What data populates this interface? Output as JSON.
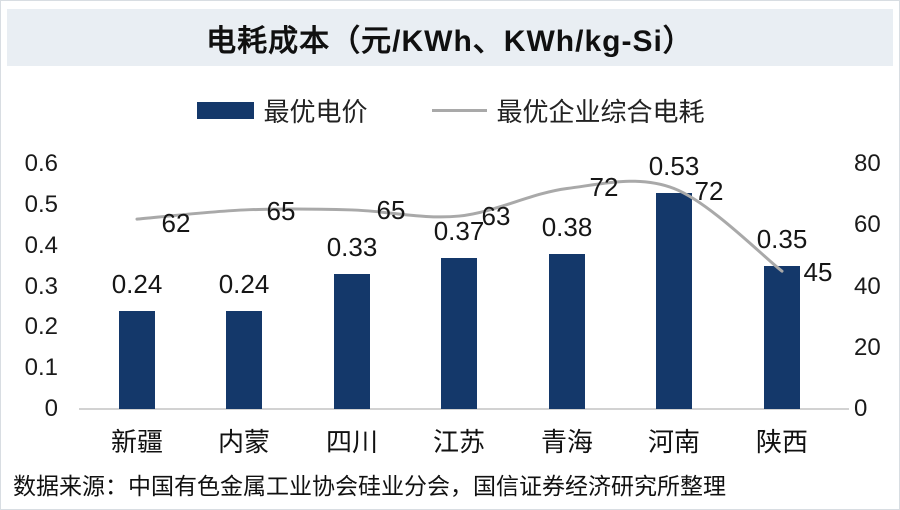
{
  "title": "电耗成本（元/KWh、KWh/kg-Si）",
  "legend": [
    {
      "label": "最优电价",
      "swatch": "bar",
      "color": "#14386a"
    },
    {
      "label": "最优企业综合电耗",
      "swatch": "line",
      "color": "#a9a9a9"
    }
  ],
  "source_note": "数据来源：中国有色金属工业协会硅业分会，国信证券经济研究所整理",
  "colors": {
    "bar": "#14386a",
    "line": "#a9a9a9",
    "title_band_bg": "#e9eef3",
    "axis_line": "#d2d2d2"
  },
  "chart_data": {
    "type": "bar+line combo",
    "title": "电耗成本（元/KWh、KWh/kg-Si）",
    "categories": [
      "新疆",
      "内蒙",
      "四川",
      "江苏",
      "青海",
      "河南",
      "陕西"
    ],
    "series": [
      {
        "name": "最优电价",
        "type": "bar",
        "axis": "left",
        "unit": "元/KWh",
        "color": "#14386a",
        "values": [
          0.24,
          0.24,
          0.33,
          0.37,
          0.38,
          0.53,
          0.35
        ],
        "labels": [
          "0.24",
          "0.24",
          "0.33",
          "0.37",
          "0.38",
          "0.53",
          "0.35"
        ]
      },
      {
        "name": "最优企业综合电耗",
        "type": "line",
        "axis": "right",
        "unit": "KWh/kg-Si",
        "color": "#a9a9a9",
        "values": [
          62,
          65,
          65,
          63,
          72,
          72,
          45
        ],
        "labels": [
          "62",
          "65",
          "65",
          "63",
          "72",
          "72",
          "45"
        ]
      }
    ],
    "left_axis": {
      "min": 0,
      "max": 0.6,
      "ticks": [
        "0.6",
        "0.5",
        "0.4",
        "0.3",
        "0.2",
        "0.1",
        "0"
      ]
    },
    "right_axis": {
      "min": 0,
      "max": 80,
      "ticks": [
        "80",
        "60",
        "40",
        "20",
        "0"
      ]
    },
    "grid": false,
    "legend_position": "top"
  }
}
